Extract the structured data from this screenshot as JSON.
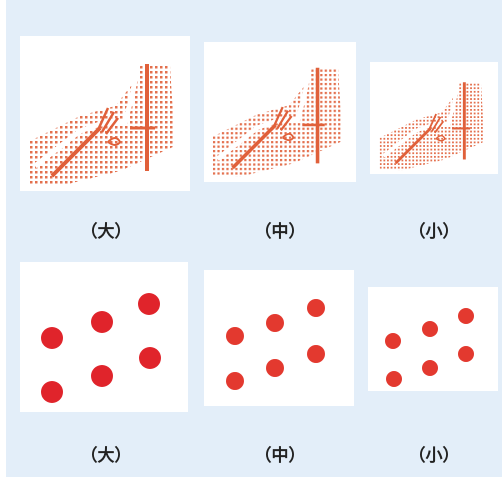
{
  "top_row": {
    "labels": [
      "（大）",
      "（中）",
      "（小）"
    ],
    "image_subject": "hand-with-fork-chopsticks-icon"
  },
  "bottom_row": {
    "labels": [
      "（大）",
      "（中）",
      "（小）"
    ],
    "dots_per_card": 6
  },
  "colors": {
    "background": "#e3eef9",
    "dot_red": "#e0242b",
    "dot_red_mid": "#e3392f",
    "pattern_orange": "#e0603a"
  }
}
